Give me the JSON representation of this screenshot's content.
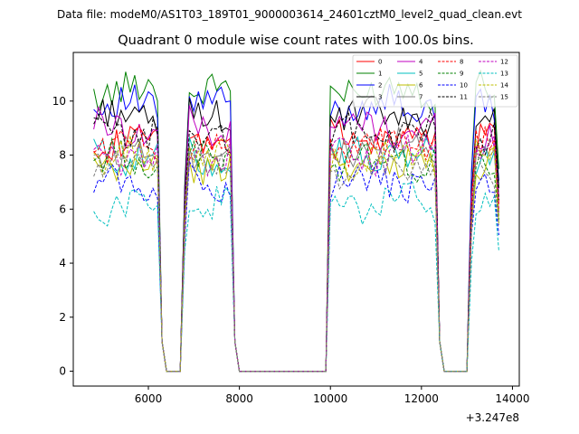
{
  "suptitle": "Data file: modeM0/AS1T03_189T01_9000003614_24601cztM0_level2_quad_clean.evt",
  "chart_data": {
    "type": "line",
    "title": "Quadrant 0 module wise count rates with 100.0s bins.",
    "xlabel": "",
    "ylabel": "",
    "x_offset_label": "+3.247e8",
    "xlim": [
      4350,
      14150
    ],
    "ylim": [
      -0.55,
      11.8
    ],
    "xticks": [
      6000,
      8000,
      10000,
      12000,
      14000
    ],
    "xtick_labels": [
      "6000",
      "8000",
      "10000",
      "12000",
      "14000"
    ],
    "yticks": [
      0,
      2,
      4,
      6,
      8,
      10
    ],
    "ytick_labels": [
      "0",
      "2",
      "4",
      "6",
      "8",
      "10"
    ],
    "grid": false,
    "legend_position": "top-right",
    "legend_columns": 4,
    "segments": [
      {
        "start": 4800,
        "end": 6200,
        "dip": 6300
      },
      {
        "start": 6800,
        "end": 7800,
        "dip": 7900
      },
      {
        "start": 10000,
        "end": 12300,
        "dip": 12400
      },
      {
        "start": 13100,
        "end": 13700,
        "dip": null
      }
    ],
    "zero_ranges": [
      [
        6400,
        6700
      ],
      [
        8000,
        9900
      ],
      [
        12500,
        13000
      ]
    ],
    "series": [
      {
        "name": "0",
        "color": "#ff0000",
        "linestyle": "solid",
        "level": 8.6
      },
      {
        "name": "1",
        "color": "#008000",
        "linestyle": "solid",
        "level": 10.4
      },
      {
        "name": "2",
        "color": "#0000ff",
        "linestyle": "solid",
        "level": 9.8
      },
      {
        "name": "3",
        "color": "#000000",
        "linestyle": "solid",
        "level": 9.4
      },
      {
        "name": "4",
        "color": "#c000c0",
        "linestyle": "solid",
        "level": 9.0
      },
      {
        "name": "5",
        "color": "#00bfbf",
        "linestyle": "solid",
        "level": 8.0
      },
      {
        "name": "6",
        "color": "#bfbf00",
        "linestyle": "solid",
        "level": 7.6
      },
      {
        "name": "7",
        "color": "#808080",
        "linestyle": "solid",
        "level": 8.2
      },
      {
        "name": "8",
        "color": "#ff0000",
        "linestyle": "dashed",
        "level": 8.3
      },
      {
        "name": "9",
        "color": "#008000",
        "linestyle": "dashed",
        "level": 7.8
      },
      {
        "name": "10",
        "color": "#0000ff",
        "linestyle": "dashed",
        "level": 7.0
      },
      {
        "name": "11",
        "color": "#000000",
        "linestyle": "dashed",
        "level": 8.8
      },
      {
        "name": "12",
        "color": "#c000c0",
        "linestyle": "dashed",
        "level": 8.0
      },
      {
        "name": "13",
        "color": "#00bfbf",
        "linestyle": "dashed",
        "level": 6.2
      },
      {
        "name": "14",
        "color": "#bfbf00",
        "linestyle": "dashed",
        "level": 7.9
      },
      {
        "name": "15",
        "color": "#808080",
        "linestyle": "dashed",
        "level": 7.5
      }
    ]
  }
}
